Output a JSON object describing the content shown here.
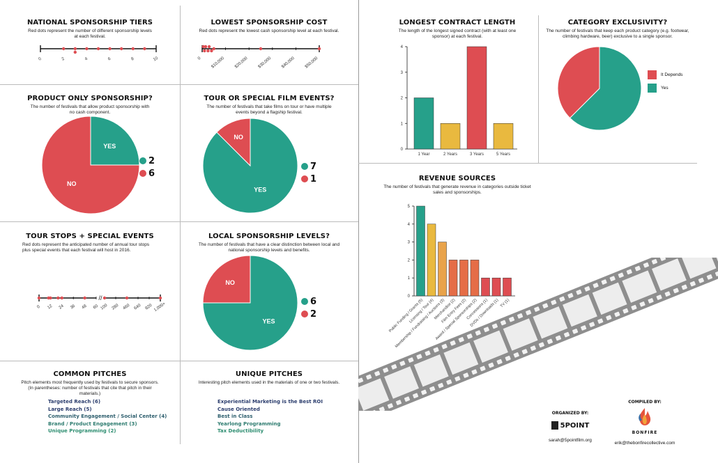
{
  "colors": {
    "teal": "#26a08a",
    "red": "#de4d52",
    "yellow": "#e9b93f",
    "orange": "#e56d47",
    "navy": "#2c3e6e",
    "green": "#2e8e71"
  },
  "tiers": {
    "title": "NATIONAL SPONSORSHIP TIERS",
    "subtitle": "Red dots represent the number of different sponsorship levels at each festival.",
    "ticks": [
      "0",
      "2",
      "4",
      "6",
      "8",
      "10"
    ]
  },
  "lowest": {
    "title": "LOWEST SPONSORSHIP COST",
    "subtitle": "Red dots represent the lowest cash sponsorship level at each festival.",
    "ticks": [
      "0",
      "$10,000",
      "$20,000",
      "$30,000",
      "$40,000",
      "$50,000"
    ]
  },
  "product": {
    "title": "PRODUCT ONLY SPONSORSHIP?",
    "subtitle": "The number of festivals that allow product sponsorship with no cash component.",
    "yes_label": "YES",
    "no_label": "NO",
    "yes_count": "2",
    "no_count": "6"
  },
  "tour": {
    "title": "TOUR OR SPECIAL FILM EVENTS?",
    "subtitle": "The number of festivals that take films on tour or have multiple events beyond a flagship festival.",
    "yes_label": "YES",
    "no_label": "NO",
    "yes_count": "7",
    "no_count": "1"
  },
  "stops": {
    "title": "TOUR STOPS + SPECIAL EVENTS",
    "subtitle": "Red dots represent the anticipated number of annual tour stops plus special events that each festival will host in 2016.",
    "ticks": [
      "0",
      "12",
      "24",
      "36",
      "48",
      "60",
      "100",
      "280",
      "460",
      "640",
      "820",
      "1,000+"
    ]
  },
  "local": {
    "title": "LOCAL SPONSORSHIP LEVELS?",
    "subtitle": "The number of festivals that have a clear distinction between local and national sponsorship levels and benefits.",
    "yes_label": "YES",
    "no_label": "NO",
    "yes_count": "6",
    "no_count": "2"
  },
  "common": {
    "title": "COMMON PITCHES",
    "subtitle": "Pitch elements most frequently used by festivals to secure sponsors. (In parentheses: number of festivals that cite that pitch in their materials.)",
    "items": [
      "Targeted Reach (6)",
      "Large Reach (5)",
      "Community Engagement / Social Center (4)",
      "Brand / Product Engagement (3)",
      "Unique Programming (2)"
    ]
  },
  "unique": {
    "title": "UNIQUE PITCHES",
    "subtitle": "Interesting pitch elements used in the materials of one or two festivals.",
    "items": [
      "Experiential Marketing is the Best ROI",
      "Cause Oriented",
      "Best in Class",
      "Yearlong Programming",
      "Tax Deductibility"
    ]
  },
  "contract": {
    "title": "LONGEST CONTRACT LENGTH",
    "subtitle": "The length of the longest signed contract (with at least one sponsor) at each festival."
  },
  "exclusivity": {
    "title": "CATEGORY EXCLUSIVITY?",
    "subtitle": "The number of festivals that keep each product category (e.g. footwear, climbing hardware, beer) exclusive to a single sponsor.",
    "legend": [
      "It Depends",
      "Yes"
    ]
  },
  "revenue": {
    "title": "REVENUE SOURCES",
    "subtitle": "The number of festivals that generate revenue in categories outside ticket sales and sponsorships."
  },
  "footer": {
    "organized_label": "ORGANIZED BY:",
    "organizer_logo": "5POINT",
    "organizer_email": "sarah@5pointfilm.org",
    "compiled_label": "COMPILED BY:",
    "compiler_logo": "BONFIRE",
    "compiler_email": "erik@thebonfirecollective.com"
  },
  "chart_data": [
    {
      "type": "scatter",
      "title": "NATIONAL SPONSORSHIP TIERS",
      "xlim": [
        0,
        10
      ],
      "x": [
        2,
        3,
        3,
        4,
        5,
        6,
        7,
        8,
        9
      ]
    },
    {
      "type": "scatter",
      "title": "LOWEST SPONSORSHIP COST",
      "xlim": [
        0,
        50000
      ],
      "x": [
        500,
        1000,
        1500,
        2500,
        3000,
        4000,
        5000,
        25000,
        50000
      ]
    },
    {
      "type": "pie",
      "title": "PRODUCT ONLY SPONSORSHIP?",
      "labels": [
        "YES",
        "NO"
      ],
      "values": [
        2,
        6
      ]
    },
    {
      "type": "pie",
      "title": "TOUR OR SPECIAL FILM EVENTS?",
      "labels": [
        "YES",
        "NO"
      ],
      "values": [
        7,
        1
      ]
    },
    {
      "type": "scatter",
      "title": "TOUR STOPS + SPECIAL EVENTS",
      "x": [
        0,
        10,
        12,
        20,
        24,
        48,
        100,
        460,
        1000
      ]
    },
    {
      "type": "pie",
      "title": "LOCAL SPONSORSHIP LEVELS?",
      "labels": [
        "YES",
        "NO"
      ],
      "values": [
        6,
        2
      ]
    },
    {
      "type": "bar",
      "title": "LONGEST CONTRACT LENGTH",
      "categories": [
        "1 Year",
        "2 Years",
        "3 Years",
        "5 Years"
      ],
      "values": [
        2,
        1,
        4,
        1
      ],
      "colors": [
        "#26a08a",
        "#e9b93f",
        "#de4d52",
        "#e9b93f"
      ],
      "ylim": [
        0,
        4
      ],
      "yticks": [
        "0",
        "1",
        "2",
        "3",
        "4"
      ]
    },
    {
      "type": "pie",
      "title": "CATEGORY EXCLUSIVITY?",
      "labels": [
        "It Depends",
        "Yes"
      ],
      "values": [
        3,
        5
      ]
    },
    {
      "type": "bar",
      "title": "REVENUE SOURCES",
      "categories": [
        "Public Funding / Grants (5)",
        "Licensing / Tour (4)",
        "Membership / Fundraising / Auctions (3)",
        "Merchandise (2)",
        "Film Entry Fees (2)",
        "Award / Special Sponsorships (2)",
        "Concessions (1)",
        "DVDs / Downloads (1)",
        "TV (1)"
      ],
      "values": [
        5,
        4,
        3,
        2,
        2,
        2,
        1,
        1,
        1
      ],
      "colors": [
        "#26a08a",
        "#e9b93f",
        "#e9a34a",
        "#e56d47",
        "#e56d47",
        "#e56d47",
        "#de4d52",
        "#de4d52",
        "#de4d52"
      ],
      "ylim": [
        0,
        5
      ],
      "yticks": [
        "0",
        "1",
        "2",
        "3",
        "4",
        "5"
      ]
    }
  ]
}
